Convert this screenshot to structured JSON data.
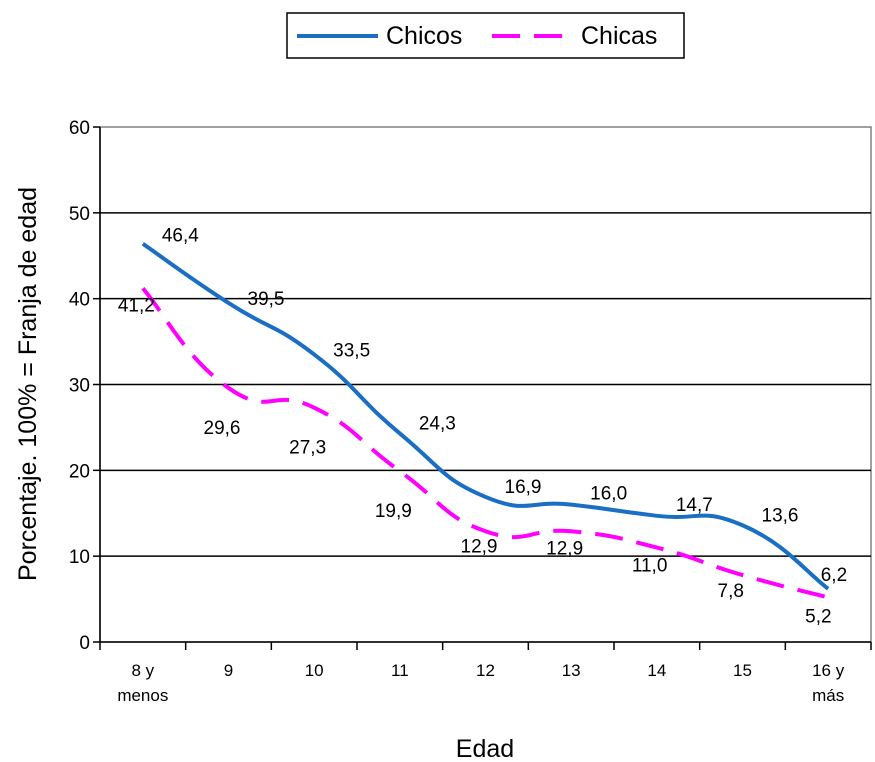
{
  "chart_data": {
    "type": "line",
    "categories": [
      [
        "8 y",
        "menos"
      ],
      [
        "9"
      ],
      [
        "10"
      ],
      [
        "11"
      ],
      [
        "12"
      ],
      [
        "13"
      ],
      [
        "14"
      ],
      [
        "15"
      ],
      [
        "16 y",
        "más"
      ]
    ],
    "series": [
      {
        "name": "Chicos",
        "color": "#1a6fc4",
        "dashed": false,
        "values": [
          46.4,
          39.5,
          33.5,
          24.3,
          16.9,
          16.0,
          14.7,
          13.6,
          6.2
        ],
        "labels": [
          "46,4",
          "39,5",
          "33,5",
          "24,3",
          "16,9",
          "16,0",
          "14,7",
          "13,6",
          "6,2"
        ]
      },
      {
        "name": "Chicas",
        "color": "#ff00ff",
        "dashed": true,
        "values": [
          41.2,
          29.6,
          27.3,
          19.9,
          12.9,
          12.9,
          11.0,
          7.8,
          5.2
        ],
        "labels": [
          "41,2",
          "29,6",
          "27,3",
          "19,9",
          "12,9",
          "12,9",
          "11,0",
          "7,8",
          "5,2"
        ]
      }
    ],
    "xlabel": "Edad",
    "ylabel": "Porcentaje. 100% = Franja de edad",
    "ylim": [
      0,
      60
    ],
    "yticks": [
      0,
      10,
      20,
      30,
      40,
      50,
      60
    ],
    "grid": true,
    "legend_position": "top-center"
  }
}
